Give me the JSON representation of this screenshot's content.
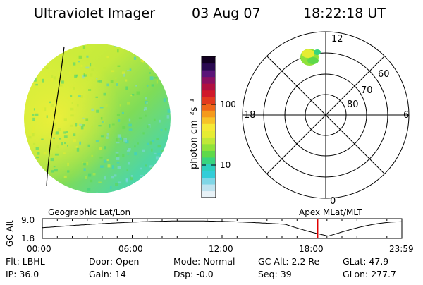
{
  "header": {
    "instrument": "Ultraviolet Imager",
    "date": "03 Aug 07",
    "time": "18:22:18 UT"
  },
  "colorbar": {
    "label": "photon cm⁻²s⁻¹",
    "ticks": [
      {
        "label": "100",
        "value": 100
      },
      {
        "label": "10",
        "value": 10
      }
    ],
    "colors": [
      "#e8f2f7",
      "#bfe3ef",
      "#7fd6e6",
      "#33cdd8",
      "#2ecfbe",
      "#38d47e",
      "#5fd94a",
      "#8fe23a",
      "#bfe838",
      "#e6ec33",
      "#f5e936",
      "#f7c328",
      "#f59a1c",
      "#ef6619",
      "#e23a1e",
      "#d0192a",
      "#b01040",
      "#8a1060",
      "#5a1478",
      "#2a0a50",
      "#120020"
    ]
  },
  "polar_plot": {
    "mlt_labels": {
      "top": "12",
      "left": "18",
      "right": "6",
      "bottom": "0"
    },
    "lat_labels": [
      "60",
      "70",
      "80"
    ]
  },
  "timeline": {
    "ylabel": "GC Alt",
    "yticks": [
      "9.0",
      "1.8"
    ],
    "top_left": "Geographic Lat/Lon",
    "top_right": "Apex  MLat/MLT",
    "xticks": [
      "00:00",
      "06:00",
      "12:00",
      "18:00",
      "23:59"
    ],
    "marker_time": "18:22:18",
    "line_color": "#000000",
    "marker_color": "#e00000"
  },
  "info": [
    [
      {
        "label": "Flt:",
        "value": "LBHL"
      },
      {
        "label": "Door:",
        "value": "Open"
      },
      {
        "label": "Mode:",
        "value": "Normal"
      },
      {
        "label": "GC Alt:",
        "value": "2.2 Re"
      },
      {
        "label": "GLat:",
        "value": "47.9"
      }
    ],
    [
      {
        "label": "IP:",
        "value": "36.0"
      },
      {
        "label": "Gain:",
        "value": "14"
      },
      {
        "label": "Dsp:",
        "value": "-0.0"
      },
      {
        "label": "Seq:",
        "value": "39"
      },
      {
        "label": "GLon:",
        "value": "277.7"
      }
    ]
  ]
}
